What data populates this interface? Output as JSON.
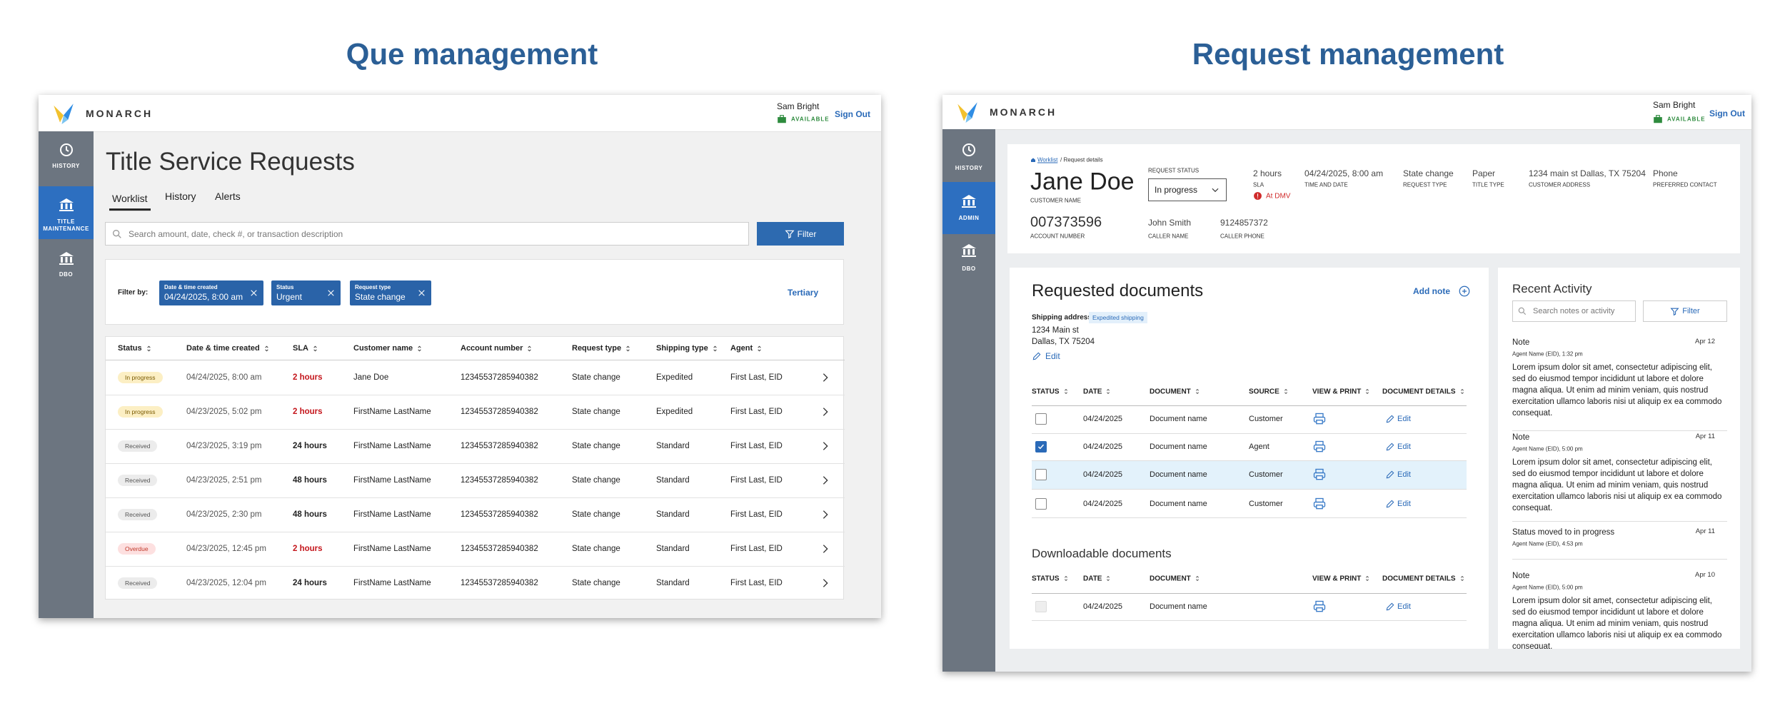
{
  "left_title": "Que management",
  "right_title": "Request management",
  "queue": {
    "app": {
      "brand": "MONARCH",
      "user": "Sam Bright",
      "availability": "AVAILABLE",
      "sign_out": "Sign Out",
      "nav": [
        "HISTORY",
        "TITLE MAINTENANCE",
        "DBO"
      ],
      "active_nav": 1
    },
    "heading": "Title Service Requests",
    "tabs": [
      "Worklist",
      "History",
      "Alerts"
    ],
    "active_tab": 0,
    "search_placeholder": "Search amount, date, check #, or transaction description",
    "filter_button": "Filter",
    "filter_by": "Filter by:",
    "chips": [
      {
        "label": "Date & time created",
        "value": "04/24/2025, 8:00 am"
      },
      {
        "label": "Status",
        "value": "Urgent"
      },
      {
        "label": "Request type",
        "value": "State change"
      }
    ],
    "tertiary": "Tertiary",
    "columns": [
      "Status",
      "Date & time created",
      "SLA",
      "Customer name",
      "Account number",
      "Request type",
      "Shipping type",
      "Agent"
    ],
    "rows": [
      {
        "cells": [
          "In progress",
          "04/24/2025, 8:00 am",
          "2 hours",
          "Jane Doe",
          "12345537285940382",
          "State change",
          "Expedited",
          "First Last, EID"
        ],
        "status_bg": "#fcefc4",
        "status_fg": "#7a5a00",
        "sla_color": "#c4161c"
      },
      {
        "cells": [
          "In progress",
          "04/23/2025, 5:02 pm",
          "2 hours",
          "FirstName LastName",
          "12345537285940382",
          "State change",
          "Expedited",
          "First Last, EID"
        ],
        "status_bg": "#fcefc4",
        "status_fg": "#7a5a00",
        "sla_color": "#c4161c"
      },
      {
        "cells": [
          "Received",
          "04/23/2025, 3:19 pm",
          "24 hours",
          "FirstName LastName",
          "12345537285940382",
          "State change",
          "Standard",
          "First Last, EID"
        ],
        "status_bg": "#ececec",
        "status_fg": "#555555",
        "sla_color": "#222222"
      },
      {
        "cells": [
          "Received",
          "04/23/2025, 2:51 pm",
          "48 hours",
          "FirstName LastName",
          "12345537285940382",
          "State change",
          "Standard",
          "First Last, EID"
        ],
        "status_bg": "#ececec",
        "status_fg": "#555555",
        "sla_color": "#222222"
      },
      {
        "cells": [
          "Received",
          "04/23/2025, 2:30 pm",
          "48 hours",
          "FirstName LastName",
          "12345537285940382",
          "State change",
          "Standard",
          "First Last, EID"
        ],
        "status_bg": "#ececec",
        "status_fg": "#555555",
        "sla_color": "#222222"
      },
      {
        "cells": [
          "Overdue",
          "04/23/2025, 12:45 pm",
          "2 hours",
          "FirstName LastName",
          "12345537285940382",
          "State change",
          "Standard",
          "First Last, EID"
        ],
        "status_bg": "#fde0e0",
        "status_fg": "#c0392b",
        "sla_color": "#c4161c"
      },
      {
        "cells": [
          "Received",
          "04/23/2025, 12:04 pm",
          "24 hours",
          "FirstName LastName",
          "12345537285940382",
          "State change",
          "Standard",
          "First Last, EID"
        ],
        "status_bg": "#ececec",
        "status_fg": "#555555",
        "sla_color": "#222222"
      }
    ]
  },
  "request": {
    "app": {
      "brand": "MONARCH",
      "user": "Sam Bright",
      "availability": "AVAILABLE",
      "sign_out": "Sign Out",
      "nav": [
        "HISTORY",
        "ADMIN",
        "DBO"
      ],
      "active_nav": 1
    },
    "breadcrumb": {
      "link": "Worklist",
      "current": "/ Request details"
    },
    "customer_name": "Jane Doe",
    "customer_name_label": "CUSTOMER NAME",
    "status_label": "REQUEST STATUS",
    "status_value": "In progress",
    "sla": {
      "value": "2 hours",
      "label": "SLA",
      "alert": "At DMV"
    },
    "fields": [
      {
        "value": "04/24/2025, 8:00 am",
        "label": "TIME AND DATE"
      },
      {
        "value": "State change",
        "label": "REQUEST TYPE"
      },
      {
        "value": "Paper",
        "label": "TITLE TYPE"
      },
      {
        "value": "1234 main st Dallas, TX 75204",
        "label": "CUSTOMER ADDRESS"
      },
      {
        "value": "Phone",
        "label": "PREFERRED CONTACT"
      }
    ],
    "account": {
      "value": "007373596",
      "label": "ACCOUNT NUMBER"
    },
    "caller_fields": [
      {
        "value": "John Smith",
        "label": "CALLER NAME"
      },
      {
        "value": "9124857372",
        "label": "CALLER PHONE"
      }
    ],
    "documents": {
      "title": "Requested documents",
      "add_note": "Add note",
      "shipping_label": "Shipping address",
      "shipping_badge": "Expedited shipping",
      "address": [
        "1234 Main st",
        "Dallas, TX 75204"
      ],
      "edit": "Edit",
      "columns": [
        "STATUS",
        "DATE",
        "DOCUMENT",
        "SOURCE",
        "VIEW & PRINT",
        "DOCUMENT DETAILS"
      ],
      "rows": [
        {
          "checked": false,
          "highlight": false,
          "date": "04/24/2025",
          "document": "Document name",
          "source": "Customer",
          "details": "Edit"
        },
        {
          "checked": true,
          "highlight": false,
          "date": "04/24/2025",
          "document": "Document name",
          "source": "Agent",
          "details": "Edit"
        },
        {
          "checked": false,
          "highlight": true,
          "date": "04/24/2025",
          "document": "Document name",
          "source": "Customer",
          "details": "Edit"
        },
        {
          "checked": false,
          "highlight": false,
          "date": "04/24/2025",
          "document": "Document name",
          "source": "Customer",
          "details": "Edit"
        }
      ]
    },
    "downloads": {
      "title": "Downloadable documents",
      "columns": [
        "STATUS",
        "DATE",
        "DOCUMENT",
        "VIEW & PRINT",
        "DOCUMENT DETAILS"
      ],
      "rows": [
        {
          "date": "04/24/2025",
          "document": "Document name",
          "details": "Edit"
        }
      ]
    },
    "activity": {
      "title": "Recent Activity",
      "search_placeholder": "Search notes or activity",
      "filter_button": "Filter",
      "items": [
        {
          "title": "Note",
          "date": "Apr 12",
          "meta": "Agent Name (EID), 1:32 pm",
          "body": "Lorem ipsum dolor sit amet, consectetur adipiscing elit, sed do eiusmod tempor incididunt ut labore et dolore magna aliqua. Ut enim ad minim veniam, quis nostrud exercitation ullamco laboris nisi ut aliquip ex ea commodo consequat."
        },
        {
          "title": "Note",
          "date": "Apr 11",
          "meta": "Agent Name (EID), 5:00 pm",
          "body": "Lorem ipsum dolor sit amet, consectetur adipiscing elit, sed do eiusmod tempor incididunt ut labore et dolore magna aliqua. Ut enim ad minim veniam, quis nostrud exercitation ullamco laboris nisi ut aliquip ex ea commodo consequat."
        },
        {
          "title": "Status moved to in progress",
          "date": "Apr 11",
          "meta": "Agent Name (EID), 4:53 pm"
        },
        {
          "title": "Note",
          "date": "Apr 10",
          "meta": "Agent Name (EID), 5:00 pm",
          "body": "Lorem ipsum dolor sit amet, consectetur adipiscing elit, sed do eiusmod tempor incididunt ut labore et dolore magna aliqua. Ut enim ad minim veniam, quis nostrud exercitation ullamco laboris nisi ut aliquip ex ea commodo consequat."
        }
      ]
    }
  }
}
